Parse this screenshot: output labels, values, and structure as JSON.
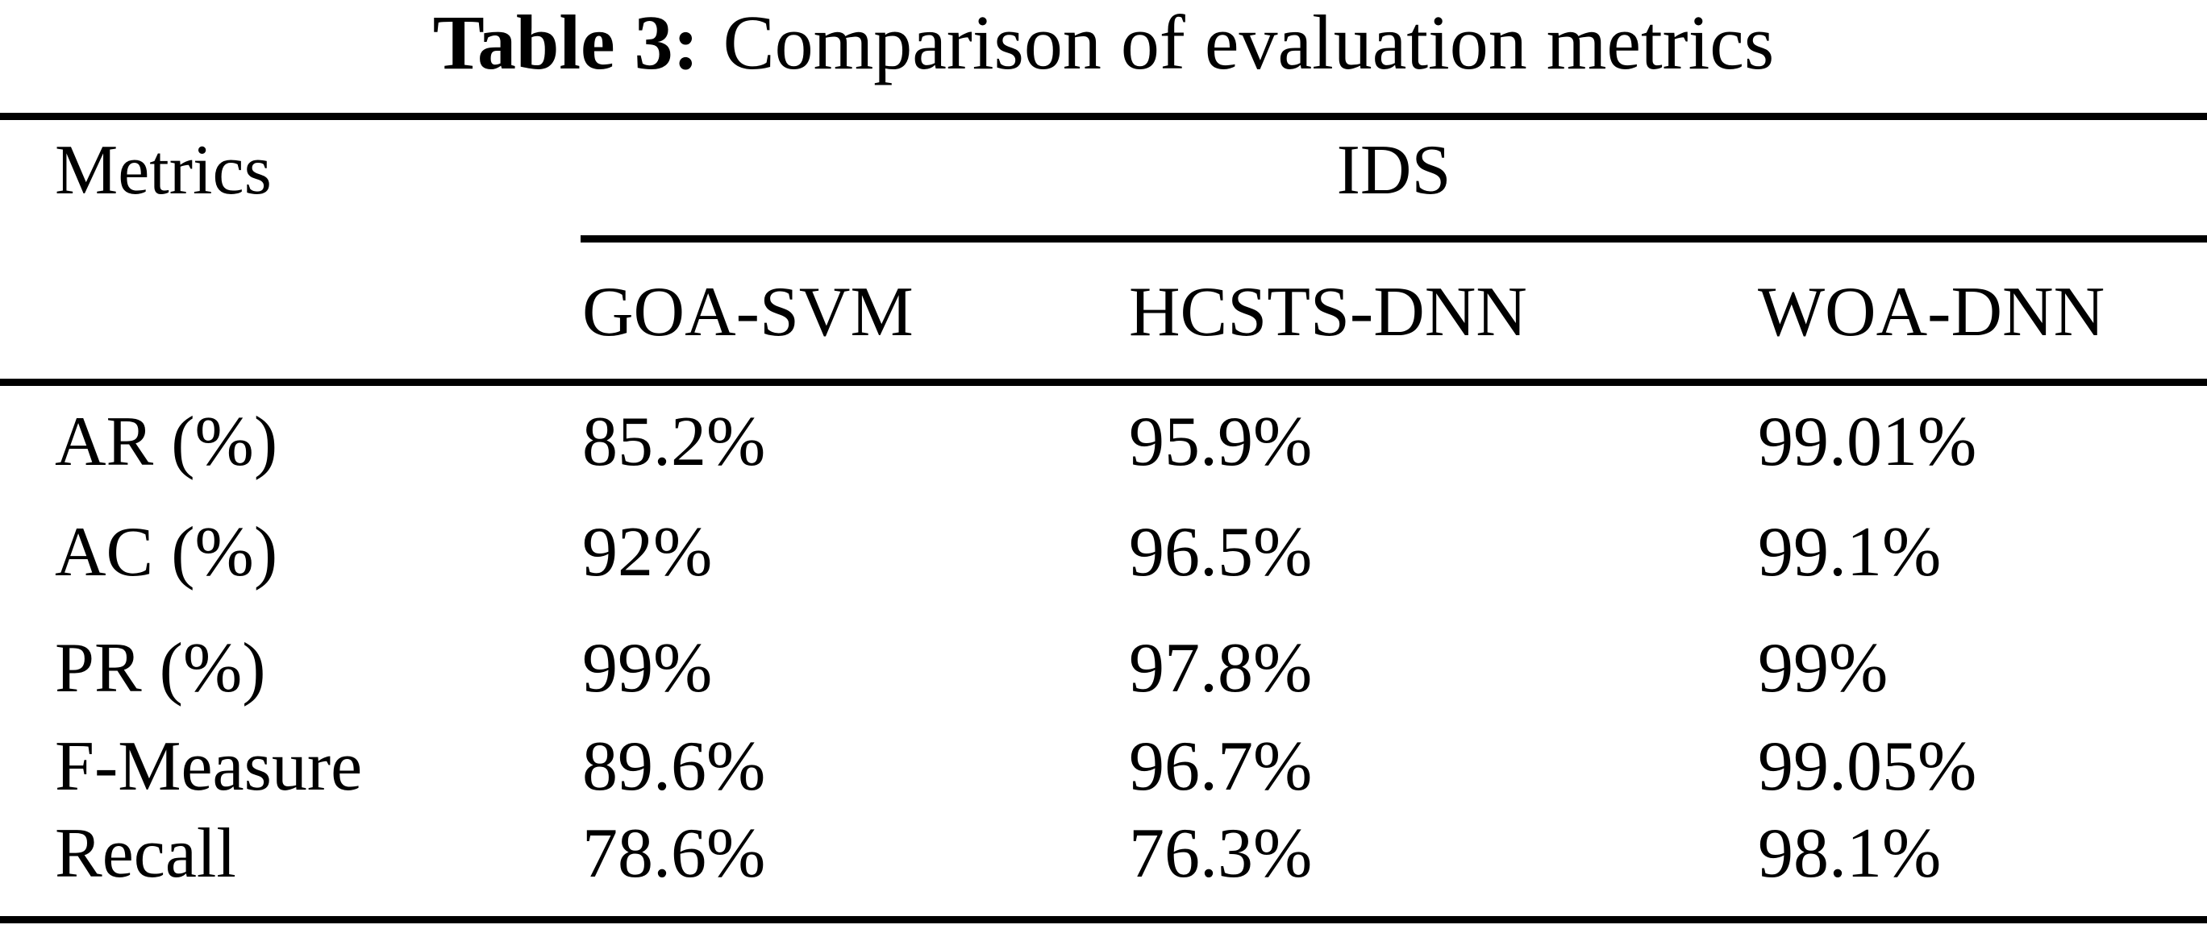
{
  "page": {
    "background_color": "#ffffff",
    "text_color": "#000000",
    "rule_color": "#000000"
  },
  "caption": {
    "label": "Table 3:",
    "title": "Comparison of evaluation metrics"
  },
  "table": {
    "metrics_header": "Metrics",
    "group_header": "IDS",
    "columns": [
      "GOA-SVM",
      "HCSTS-DNN",
      "WOA-DNN"
    ],
    "rows": [
      {
        "metric": "AR (%)",
        "cells": [
          "85.2%",
          "95.9%",
          "99.01%"
        ]
      },
      {
        "metric": "AC (%)",
        "cells": [
          "92%",
          "96.5%",
          "99.1%"
        ]
      },
      {
        "metric": "PR (%)",
        "cells": [
          "99%",
          "97.8%",
          "99%"
        ]
      },
      {
        "metric": "F-Measure",
        "cells": [
          "89.6%",
          "96.7%",
          "99.05%"
        ]
      },
      {
        "metric": "Recall",
        "cells": [
          "78.6%",
          "76.3%",
          "98.1%"
        ]
      }
    ]
  },
  "chart_data": {
    "type": "table",
    "title": "Table 3: Comparison of evaluation metrics",
    "row_header": "Metrics",
    "column_group": "IDS",
    "columns": [
      "GOA-SVM",
      "HCSTS-DNN",
      "WOA-DNN"
    ],
    "rows": [
      {
        "metric": "AR (%)",
        "values": [
          "85.2%",
          "95.9%",
          "99.01%"
        ]
      },
      {
        "metric": "AC (%)",
        "values": [
          "92%",
          "96.5%",
          "99.1%"
        ]
      },
      {
        "metric": "PR (%)",
        "values": [
          "99%",
          "97.8%",
          "99%"
        ]
      },
      {
        "metric": "F-Measure",
        "values": [
          "89.6%",
          "96.7%",
          "99.05%"
        ]
      },
      {
        "metric": "Recall",
        "values": [
          "78.6%",
          "76.3%",
          "98.1%"
        ]
      }
    ]
  }
}
